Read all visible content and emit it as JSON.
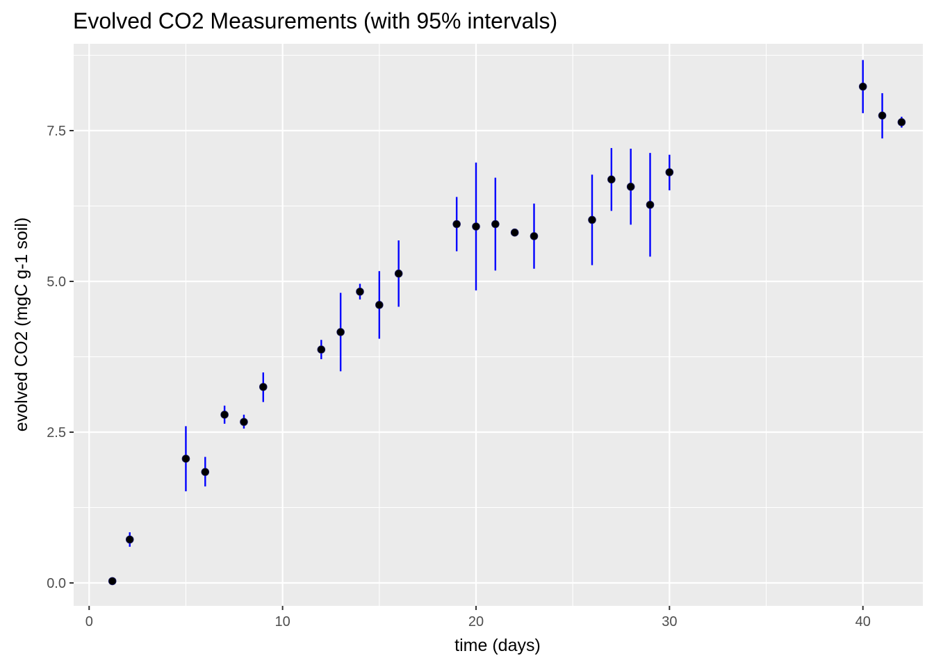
{
  "chart_data": {
    "type": "scatter",
    "title": "Evolved CO2 Measurements (with 95% intervals)",
    "xlabel": "time (days)",
    "ylabel": "evolved CO2 (mgC g-1 soil)",
    "xlim": [
      -0.8,
      43.1
    ],
    "ylim": [
      -0.38,
      8.94
    ],
    "x_ticks": [
      0,
      10,
      20,
      30,
      40
    ],
    "x_tick_labels": [
      "0",
      "10",
      "20",
      "30",
      "40"
    ],
    "y_ticks": [
      0.0,
      2.5,
      5.0,
      7.5
    ],
    "y_tick_labels": [
      "0.0",
      "2.5",
      "5.0",
      "7.5"
    ],
    "grid": true,
    "legend": "none",
    "colors": {
      "panel": "#ebebeb",
      "grid": "#ffffff",
      "point": "#000000",
      "errorbar": "#0000ff"
    },
    "series": [
      {
        "points": [
          {
            "x": 1.2,
            "y": 0.03,
            "lo": 0.03,
            "hi": 0.03
          },
          {
            "x": 2.1,
            "y": 0.72,
            "lo": 0.6,
            "hi": 0.84
          },
          {
            "x": 5.0,
            "y": 2.06,
            "lo": 1.52,
            "hi": 2.6
          },
          {
            "x": 6.0,
            "y": 1.84,
            "lo": 1.6,
            "hi": 2.09
          },
          {
            "x": 7.0,
            "y": 2.79,
            "lo": 2.64,
            "hi": 2.94
          },
          {
            "x": 8.0,
            "y": 2.67,
            "lo": 2.56,
            "hi": 2.79
          },
          {
            "x": 9.0,
            "y": 3.25,
            "lo": 3.0,
            "hi": 3.49
          },
          {
            "x": 12.0,
            "y": 3.87,
            "lo": 3.71,
            "hi": 4.03
          },
          {
            "x": 13.0,
            "y": 4.16,
            "lo": 3.51,
            "hi": 4.81
          },
          {
            "x": 14.0,
            "y": 4.83,
            "lo": 4.7,
            "hi": 4.96
          },
          {
            "x": 15.0,
            "y": 4.61,
            "lo": 4.05,
            "hi": 5.17
          },
          {
            "x": 16.0,
            "y": 5.13,
            "lo": 4.58,
            "hi": 5.68
          },
          {
            "x": 19.0,
            "y": 5.95,
            "lo": 5.5,
            "hi": 6.4
          },
          {
            "x": 20.0,
            "y": 5.91,
            "lo": 4.85,
            "hi": 6.97
          },
          {
            "x": 21.0,
            "y": 5.95,
            "lo": 5.18,
            "hi": 6.72
          },
          {
            "x": 22.0,
            "y": 5.81,
            "lo": 5.81,
            "hi": 5.81
          },
          {
            "x": 23.0,
            "y": 5.75,
            "lo": 5.21,
            "hi": 6.29
          },
          {
            "x": 26.0,
            "y": 6.02,
            "lo": 5.27,
            "hi": 6.77
          },
          {
            "x": 27.0,
            "y": 6.69,
            "lo": 6.17,
            "hi": 7.21
          },
          {
            "x": 28.0,
            "y": 6.57,
            "lo": 5.94,
            "hi": 7.2
          },
          {
            "x": 29.0,
            "y": 6.27,
            "lo": 5.41,
            "hi": 7.13
          },
          {
            "x": 30.0,
            "y": 6.81,
            "lo": 6.51,
            "hi": 7.1
          },
          {
            "x": 40.0,
            "y": 8.23,
            "lo": 7.79,
            "hi": 8.67
          },
          {
            "x": 41.0,
            "y": 7.75,
            "lo": 7.37,
            "hi": 8.12
          },
          {
            "x": 42.0,
            "y": 7.64,
            "lo": 7.55,
            "hi": 7.73
          }
        ]
      }
    ]
  }
}
